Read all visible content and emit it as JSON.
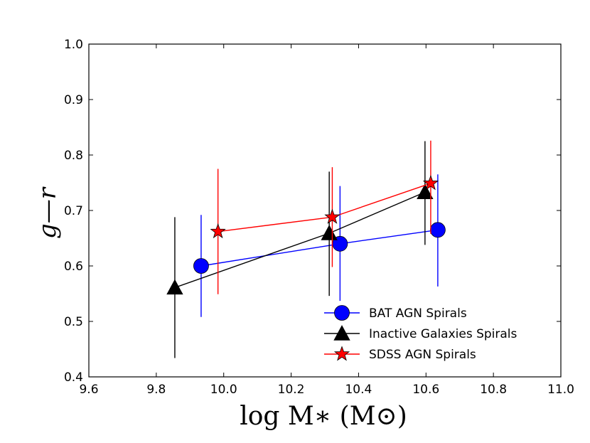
{
  "chart_data": {
    "type": "scatter",
    "title": "",
    "xlabel": "log M∗ (M⊙)",
    "ylabel": "g—r",
    "xlim": [
      9.6,
      11.0
    ],
    "ylim": [
      0.4,
      1.0
    ],
    "xticks": [
      9.6,
      9.8,
      10.0,
      10.2,
      10.4,
      10.6,
      10.8,
      11.0
    ],
    "yticks": [
      0.4,
      0.5,
      0.6,
      0.7,
      0.8,
      0.9,
      1.0
    ],
    "xtick_labels": [
      "9.6",
      "9.8",
      "10.0",
      "10.2",
      "10.4",
      "10.6",
      "10.8",
      "11.0"
    ],
    "ytick_labels": [
      "0.4",
      "0.5",
      "0.6",
      "0.7",
      "0.8",
      "0.9",
      "1.0"
    ],
    "grid": false,
    "legend_position": "bottom-right",
    "series": [
      {
        "name": "BAT AGN Spirals",
        "color": "#0000ff",
        "marker": "circle",
        "x": [
          9.933,
          10.345,
          10.635
        ],
        "y": [
          0.6,
          0.64,
          0.665
        ],
        "err_low": [
          0.092,
          0.103,
          0.102
        ],
        "err_high": [
          0.092,
          0.104,
          0.1
        ]
      },
      {
        "name": "Inactive Galaxies Spirals",
        "color": "#000000",
        "marker": "triangle",
        "x": [
          9.855,
          10.313,
          10.597
        ],
        "y": [
          0.561,
          0.659,
          0.733
        ],
        "err_low": [
          0.127,
          0.113,
          0.095
        ],
        "err_high": [
          0.127,
          0.111,
          0.092
        ]
      },
      {
        "name": "SDSS AGN Spirals",
        "color": "#ff0000",
        "marker": "star",
        "x": [
          9.983,
          10.322,
          10.614
        ],
        "y": [
          0.662,
          0.688,
          0.749
        ],
        "err_low": [
          0.113,
          0.09,
          0.091
        ],
        "err_high": [
          0.113,
          0.09,
          0.077
        ]
      }
    ]
  }
}
